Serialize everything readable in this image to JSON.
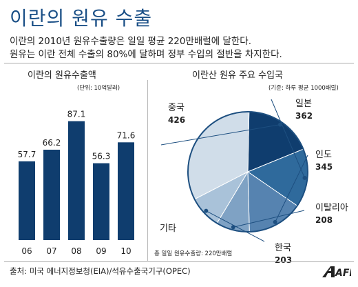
{
  "header": {
    "title": "이란의 원유 수출",
    "subtitle_line1": "이란의 2010년 원유수출량은 일일 평균 220만배럴에 달한다.",
    "subtitle_line2": "원유는 이란 전체 수출의 80%에 달하며 정부 수입의 절반을 차지한다."
  },
  "footer": {
    "source": "출처: 미국 에너지정보청(EIA)/석유수출국기구(OPEC)",
    "logo_text": "AFP"
  },
  "colors": {
    "title": "#1a4f86",
    "bar": "#0f3d6e",
    "divider": "#aaaaaa"
  },
  "chart_data": [
    {
      "type": "bar",
      "title": "이란의 원유수출액",
      "unit_note": "(단위: 10억달러)",
      "categories": [
        "06",
        "07",
        "08",
        "09",
        "10"
      ],
      "values": [
        57.7,
        66.2,
        87.1,
        56.3,
        71.6
      ],
      "value_labels": [
        "57.7",
        "66.2",
        "87.1",
        "56.3",
        "71.6"
      ],
      "ylim": [
        0,
        95
      ],
      "grid": false,
      "color": "#0f3d6e"
    },
    {
      "type": "pie",
      "title": "이란산 원유 주요 수입국",
      "unit_note": "(기준: 하루 평균 1000배럴)",
      "total_note": "총 일일 원유수출량: 220만배럴",
      "slices": [
        {
          "name": "중국",
          "value": 426,
          "label": "426",
          "color": "#0f3d6e"
        },
        {
          "name": "일본",
          "value": 362,
          "label": "362",
          "color": "#2f6a9c"
        },
        {
          "name": "인도",
          "value": 345,
          "label": "345",
          "color": "#5683b0"
        },
        {
          "name": "이탈리아",
          "value": 208,
          "label": "208",
          "color": "#7fa2c4"
        },
        {
          "name": "한국",
          "value": 203,
          "label": "203",
          "color": "#a9c2d9"
        },
        {
          "name": "기타",
          "value": 756,
          "label": "",
          "color": "#d0dde9"
        }
      ]
    }
  ]
}
